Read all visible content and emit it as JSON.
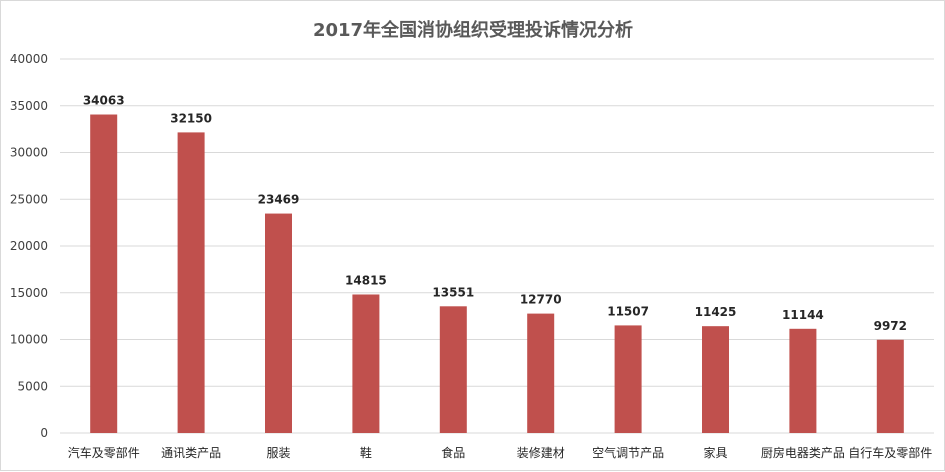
{
  "chart_data": {
    "type": "bar",
    "title": "2017年全国消协组织受理投诉情况分析",
    "xlabel": "",
    "ylabel": "",
    "categories": [
      "汽车及零部件",
      "通讯类产品",
      "服装",
      "鞋",
      "食品",
      "装修建材",
      "空气调节产品",
      "家具",
      "厨房电器类产品",
      "自行车及零部件"
    ],
    "values": [
      34063,
      32150,
      23469,
      14815,
      13551,
      12770,
      11507,
      11425,
      11144,
      9972
    ],
    "ylim": [
      0,
      40000
    ],
    "yticks": [
      "0",
      "5000",
      "10000",
      "15000",
      "20000",
      "25000",
      "30000",
      "35000",
      "40000"
    ],
    "grid": true,
    "legend": "none",
    "bar_color": "#c0504d",
    "grid_color": "#d9d9d9"
  }
}
